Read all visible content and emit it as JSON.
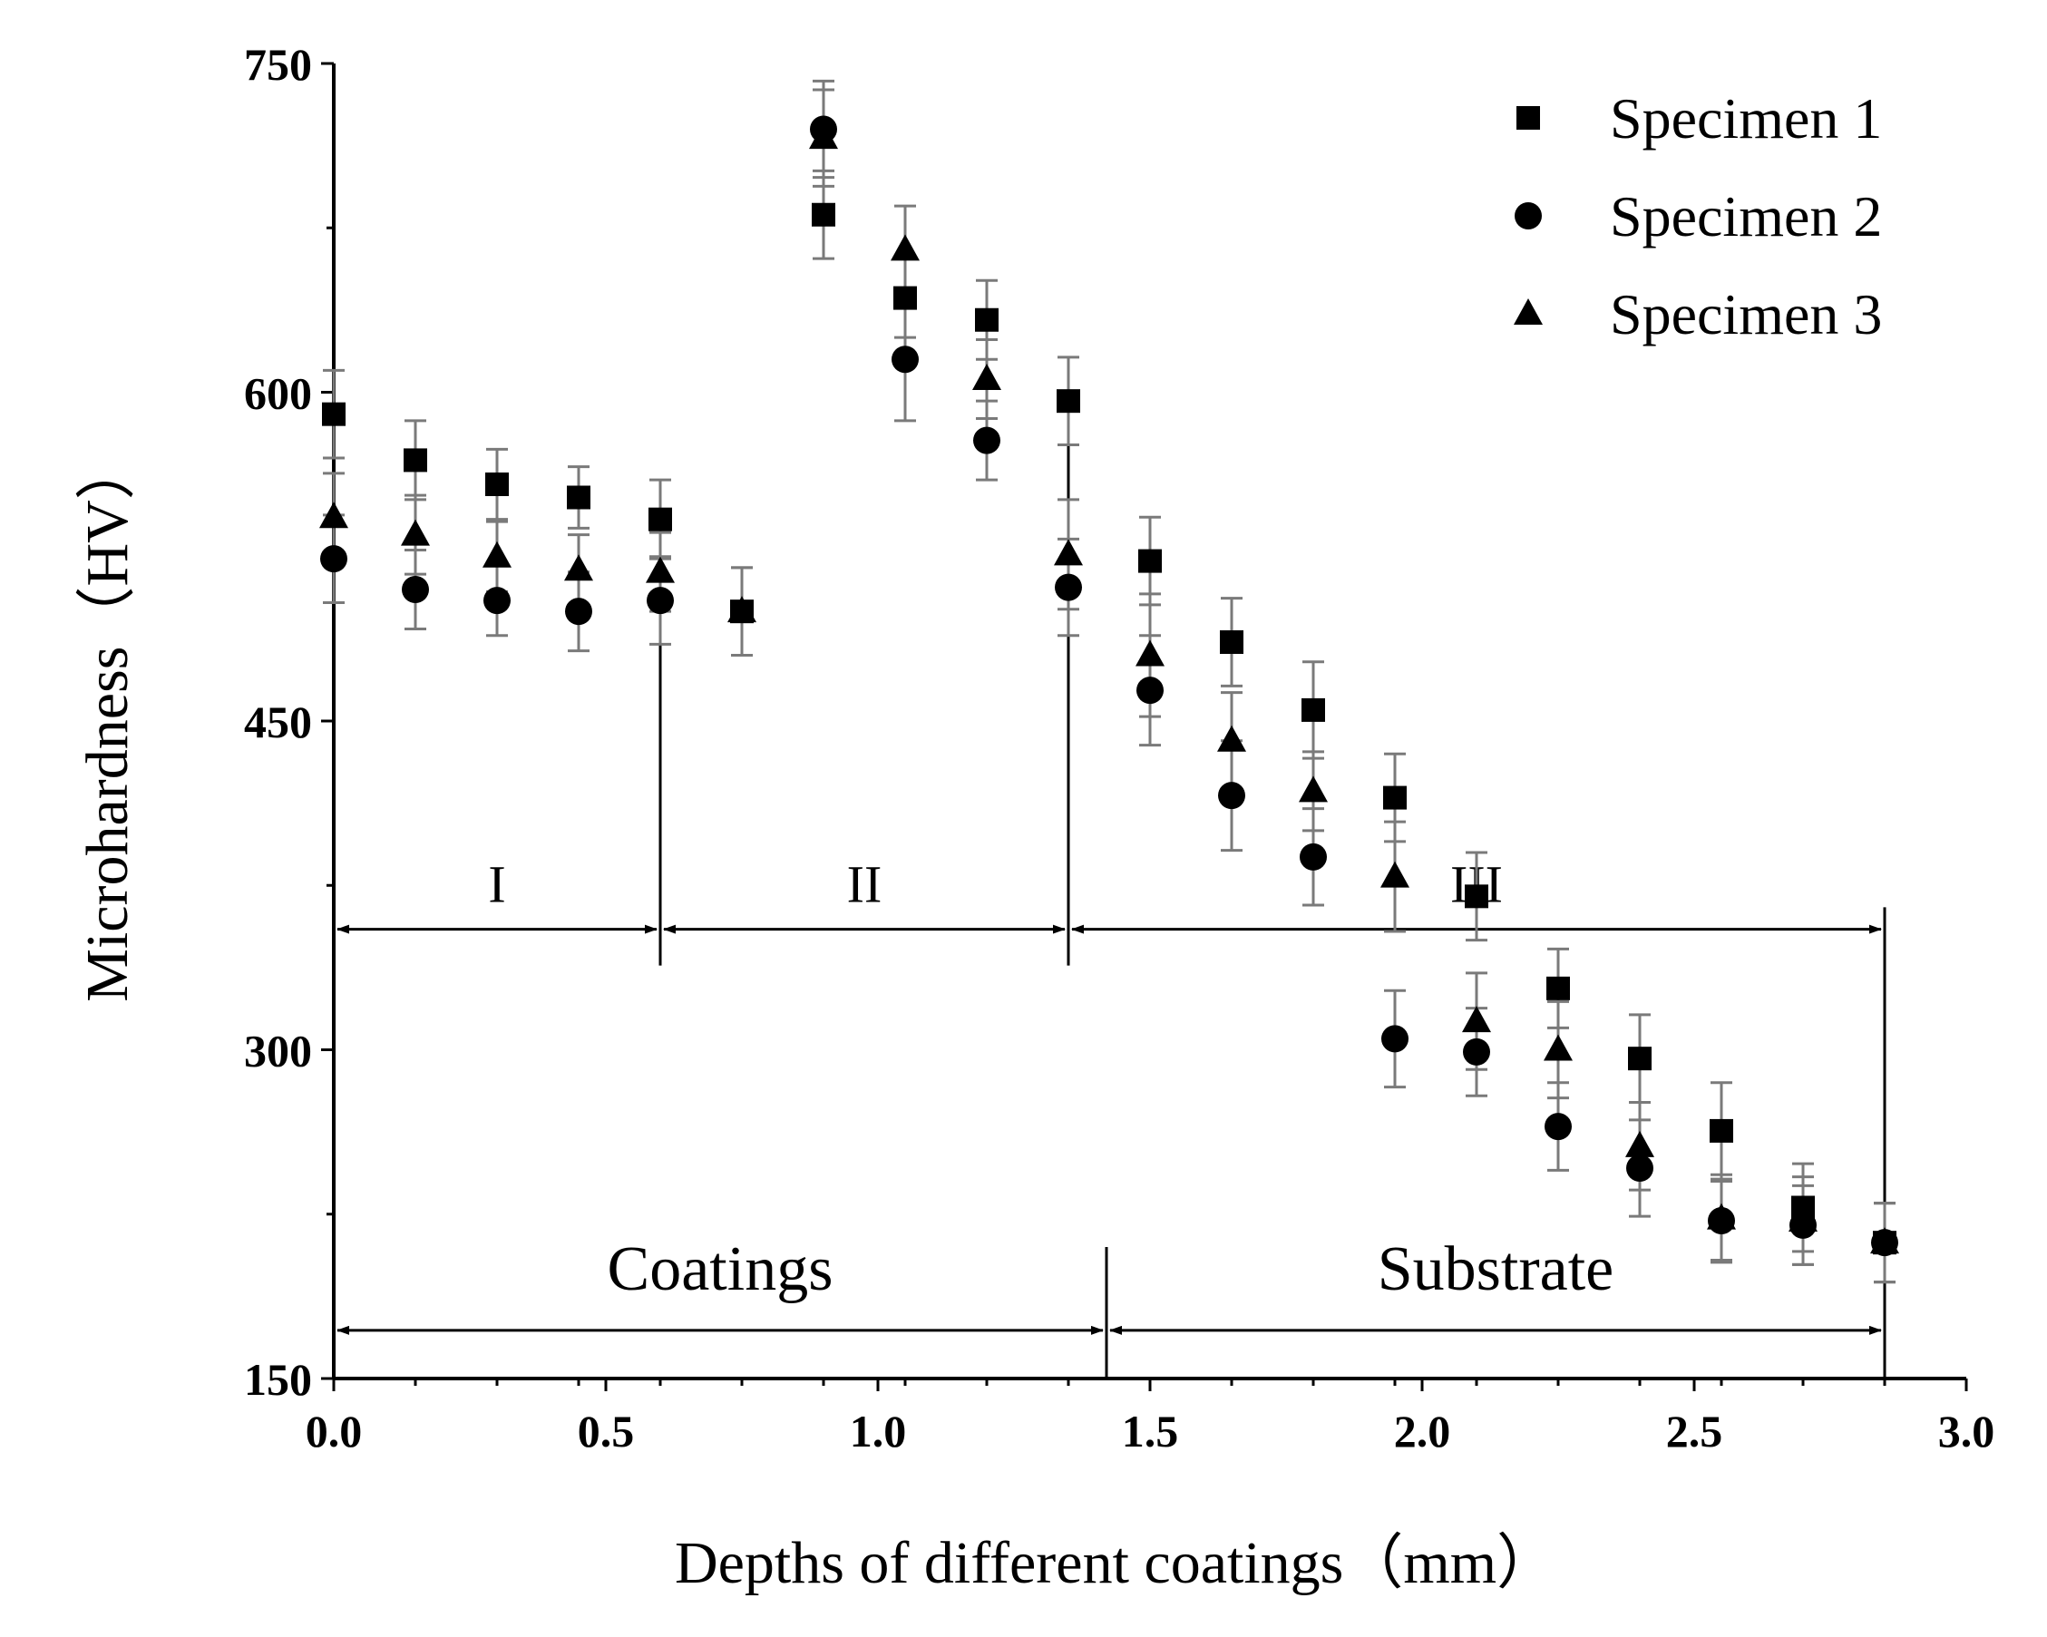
{
  "chart_data": {
    "type": "scatter",
    "title": "",
    "xlabel": "Depths of different coatings（mm）",
    "ylabel": "Microhardness（HV）",
    "xlim": [
      0.0,
      3.0
    ],
    "ylim": [
      150,
      750
    ],
    "x_ticks": [
      "0.0",
      "0.5",
      "1.0",
      "1.5",
      "2.0",
      "2.5",
      "3.0"
    ],
    "y_ticks": [
      "150",
      "300",
      "450",
      "600",
      "750"
    ],
    "legend_position": "top-right",
    "series": [
      {
        "name": "Specimen 1",
        "marker": "square",
        "x": [
          0.0,
          0.15,
          0.3,
          0.45,
          0.6,
          0.75,
          0.9,
          1.05,
          1.2,
          1.35,
          1.5,
          1.65,
          1.8,
          1.95,
          2.1,
          2.25,
          2.4,
          2.55,
          2.7,
          2.85
        ],
        "y": [
          590,
          569,
          558,
          552,
          542,
          500,
          681,
          643,
          633,
          596,
          523,
          486,
          455,
          415,
          370,
          328,
          296,
          263,
          228,
          212
        ],
        "err": [
          20,
          18,
          16,
          14,
          18,
          20,
          20,
          18,
          18,
          20,
          20,
          20,
          22,
          20,
          20,
          18,
          20,
          22,
          20,
          18
        ]
      },
      {
        "name": "Specimen 2",
        "marker": "circle",
        "x": [
          0.0,
          0.15,
          0.3,
          0.45,
          0.6,
          0.9,
          1.05,
          1.2,
          1.35,
          1.5,
          1.65,
          1.8,
          1.95,
          2.1,
          2.25,
          2.4,
          2.55,
          2.7,
          2.85
        ],
        "y": [
          524,
          510,
          505,
          500,
          505,
          720,
          615,
          578,
          511,
          464,
          416,
          388,
          305,
          299,
          265,
          246,
          222,
          220,
          212
        ],
        "err": [
          20,
          18,
          16,
          18,
          20,
          22,
          28,
          18,
          22,
          25,
          25,
          22,
          22,
          20,
          20,
          22,
          18,
          18,
          18
        ]
      },
      {
        "name": "Specimen 3",
        "marker": "triangle",
        "x": [
          0.0,
          0.15,
          0.3,
          0.45,
          0.6,
          0.75,
          0.9,
          1.05,
          1.2,
          1.35,
          1.5,
          1.65,
          1.8,
          1.95,
          2.1,
          2.25,
          2.4,
          2.55,
          2.7,
          2.85
        ],
        "y": [
          543,
          535,
          525,
          519,
          518,
          500,
          716,
          665,
          606,
          526,
          480,
          441,
          418,
          379,
          313,
          300,
          256,
          223,
          222,
          212
        ],
        "err": [
          20,
          18,
          16,
          16,
          18,
          20,
          22,
          20,
          18,
          25,
          28,
          22,
          18,
          25,
          22,
          22,
          20,
          20,
          20,
          18
        ]
      }
    ],
    "annotations": {
      "regions": [
        {
          "label": "I",
          "x_start": 0.0,
          "x_end": 0.6
        },
        {
          "label": "II",
          "x_start": 0.6,
          "x_end": 1.35
        },
        {
          "label": "III",
          "x_start": 1.35,
          "x_end": 2.85
        }
      ],
      "region_arrow_y": 355,
      "zones": [
        {
          "label": "Coatings",
          "x_start": 0.0,
          "x_end": 1.42
        },
        {
          "label": "Substrate",
          "x_start": 1.42,
          "x_end": 2.85
        }
      ],
      "zone_arrow_y": 172
    }
  }
}
